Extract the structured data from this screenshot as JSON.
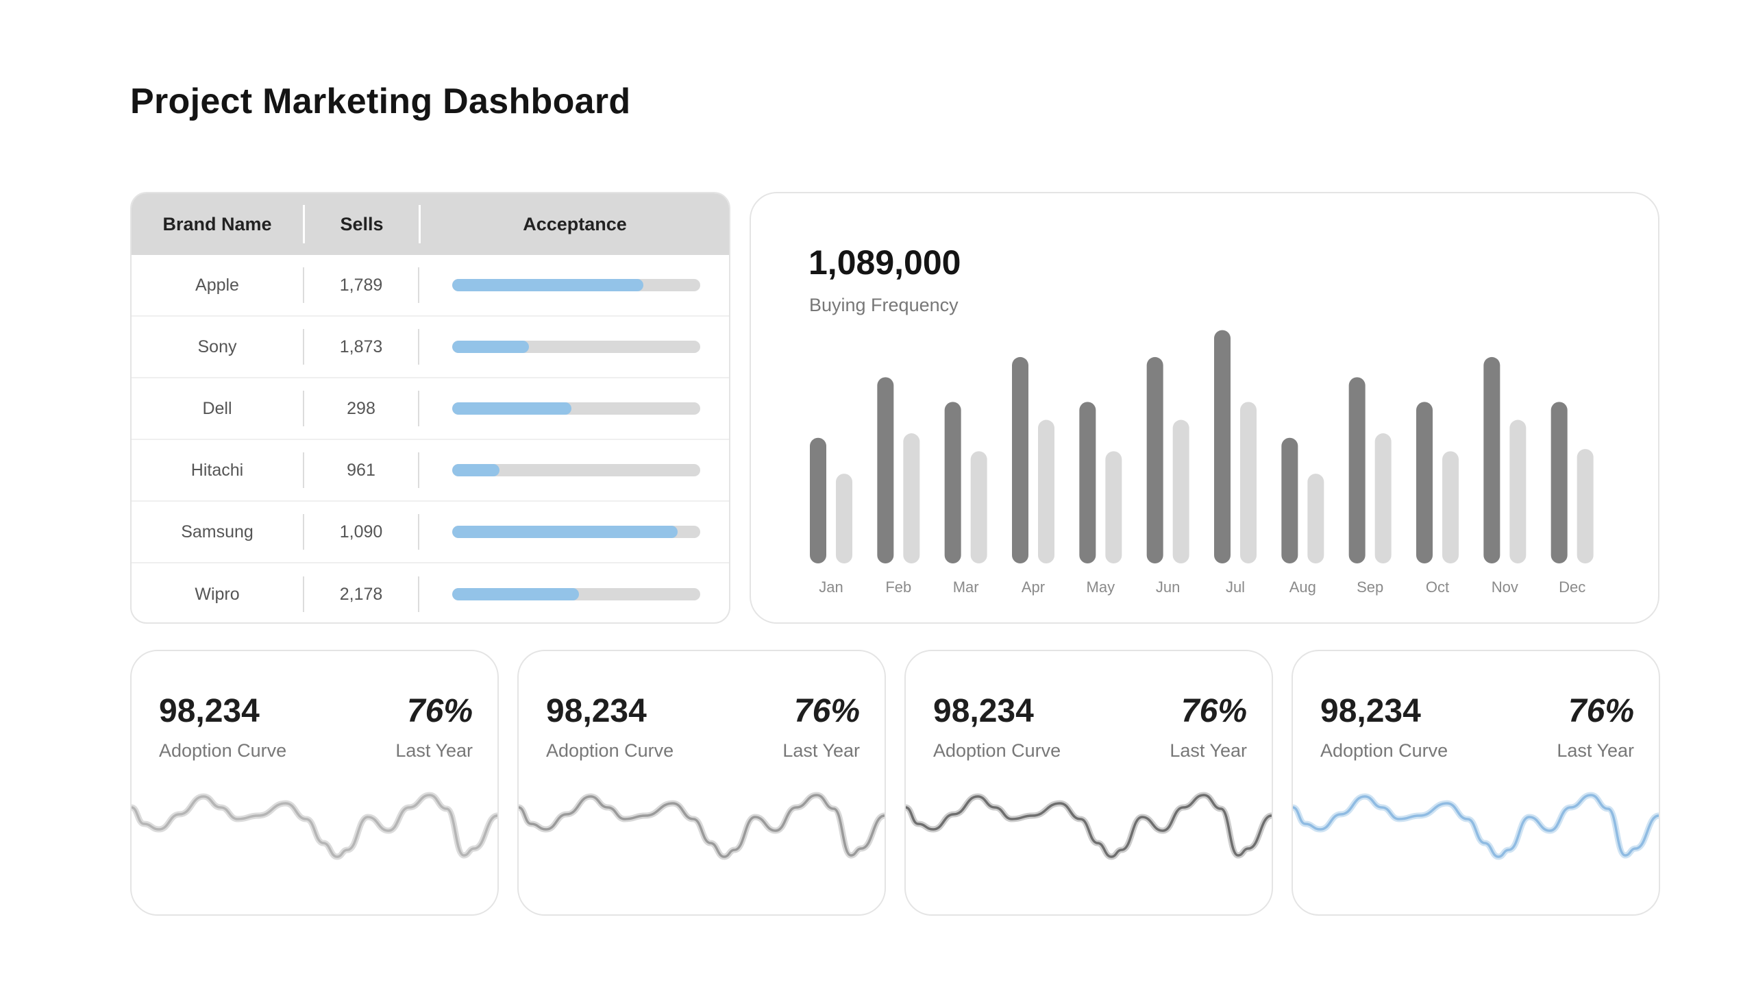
{
  "page": {
    "title": "Project Marketing Dashboard"
  },
  "table": {
    "headers": {
      "brand": "Brand Name",
      "sells": "Sells",
      "acceptance": "Acceptance"
    },
    "rows": [
      {
        "brand": "Apple",
        "sells": "1,789",
        "acceptance": 0.77
      },
      {
        "brand": "Sony",
        "sells": "1,873",
        "acceptance": 0.31
      },
      {
        "brand": "Dell",
        "sells": "298",
        "acceptance": 0.48
      },
      {
        "brand": "Hitachi",
        "sells": "961",
        "acceptance": 0.19
      },
      {
        "brand": "Samsung",
        "sells": "1,090",
        "acceptance": 0.91
      },
      {
        "brand": "Wipro",
        "sells": "2,178",
        "acceptance": 0.51
      }
    ],
    "colors": {
      "fill": "#93c3e8",
      "track": "#d9d9d9",
      "header_bg": "#d9d9d9"
    }
  },
  "chart": {
    "value": "1,089,000",
    "label": "Buying Frequency"
  },
  "chart_data": {
    "type": "bar",
    "title": "",
    "categories": [
      "Jan",
      "Feb",
      "Mar",
      "Apr",
      "May",
      "Jun",
      "Jul",
      "Aug",
      "Sep",
      "Oct",
      "Nov",
      "Dec"
    ],
    "series": [
      {
        "color": "#808080",
        "values": [
          56,
          83,
          72,
          92,
          72,
          92,
          104,
          56,
          83,
          72,
          92,
          72
        ]
      },
      {
        "color": "#d9d9d9",
        "values": [
          40,
          58,
          50,
          64,
          50,
          64,
          72,
          40,
          58,
          50,
          64,
          51
        ]
      }
    ],
    "ylim": [
      0,
      110
    ],
    "grid": false
  },
  "stats": [
    {
      "value": "98,234",
      "label": "Adoption Curve",
      "percent": "76%",
      "sub": "Last Year",
      "line_color": "#b5b5b5",
      "glow": "#dcdcdc"
    },
    {
      "value": "98,234",
      "label": "Adoption Curve",
      "percent": "76%",
      "sub": "Last Year",
      "line_color": "#9a9a9a",
      "glow": "#d8d8d8"
    },
    {
      "value": "98,234",
      "label": "Adoption Curve",
      "percent": "76%",
      "sub": "Last Year",
      "line_color": "#6e6e6e",
      "glow": "#cccccc"
    },
    {
      "value": "98,234",
      "label": "Adoption Curve",
      "percent": "76%",
      "sub": "Last Year",
      "line_color": "#8fbbe2",
      "glow": "#cfe3f3"
    }
  ]
}
